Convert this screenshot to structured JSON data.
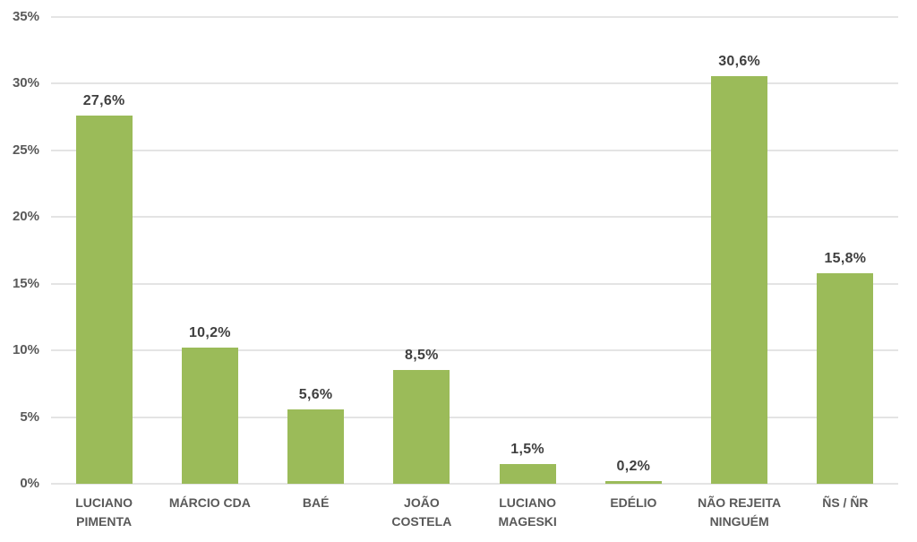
{
  "chart_data": {
    "type": "bar",
    "title": "",
    "xlabel": "",
    "ylabel": "",
    "categories": [
      "LUCIANO PIMENTA",
      "MÁRCIO CDA",
      "BAÉ",
      "JOÃO COSTELA",
      "LUCIANO MAGESKI",
      "EDÉLIO",
      "NÃO REJEITA NINGUÉM",
      "ÑS / ÑR"
    ],
    "values": [
      27.6,
      10.2,
      5.6,
      8.5,
      1.5,
      0.2,
      30.6,
      15.8
    ],
    "value_labels": [
      "27,6%",
      "10,2%",
      "5,6%",
      "8,5%",
      "1,5%",
      "0,2%",
      "30,6%",
      "15,8%"
    ],
    "ylim": [
      0,
      35
    ],
    "yticks": [
      0,
      5,
      10,
      15,
      20,
      25,
      30,
      35
    ],
    "ytick_labels": [
      "0%",
      "5%",
      "10%",
      "15%",
      "20%",
      "25%",
      "30%",
      "35%"
    ],
    "grid": "horizontal",
    "legend": "none"
  },
  "colors": {
    "bar": "#9BBB59",
    "gridline": "#E4E4E4",
    "axis_label": "#595959",
    "value_label": "#3F3F3F",
    "background": "#FFFFFF"
  }
}
